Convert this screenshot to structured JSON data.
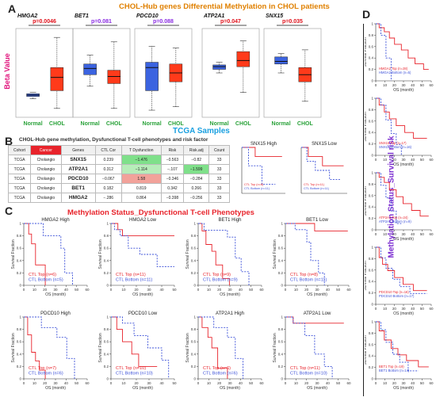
{
  "panels": {
    "a": "A",
    "b": "B",
    "c": "C",
    "d": "D"
  },
  "titles": {
    "a": "CHOL-Hub genes Differential Methylation in CHOL patients",
    "tcga": "TCGA Samples",
    "b": "CHOL-Hub gene methylation, Dysfunctional T-cell phenotypes and risk factor",
    "c": "Methylation Status_Dysfunctional T-cell Phenotypes",
    "d": "Methylation Status_Survival risk"
  },
  "box_ylabel": "Beta Value",
  "box_plots": [
    {
      "gene": "HMGA2",
      "p": "p=0.0046",
      "p_color": "#e0101a",
      "normal": [
        0.21,
        0.235,
        0.25,
        0.265,
        0.28
      ],
      "chol": [
        0.1,
        0.3,
        0.45,
        0.56,
        0.9
      ],
      "xlabels": [
        "Normal",
        "CHOL"
      ]
    },
    {
      "gene": "BET1",
      "p": "p=0.081",
      "p_color": "#8a2be2",
      "normal": [
        0.35,
        0.48,
        0.55,
        0.6,
        0.7
      ],
      "chol": [
        0.1,
        0.38,
        0.46,
        0.53,
        0.85
      ],
      "xlabels": [
        "Normal",
        "CHOL"
      ]
    },
    {
      "gene": "PDCD10",
      "p": "p=0.088",
      "p_color": "#8a2be2",
      "normal": [
        0.08,
        0.3,
        0.56,
        0.62,
        0.8
      ],
      "chol": [
        0.12,
        0.4,
        0.5,
        0.6,
        0.78
      ],
      "xlabels": [
        "Normal",
        "CHOL"
      ]
    },
    {
      "gene": "ATP2A1",
      "p": "p=0.047",
      "p_color": "#e0101a",
      "normal": [
        0.5,
        0.54,
        0.57,
        0.59,
        0.62
      ],
      "chol": [
        0.28,
        0.57,
        0.64,
        0.74,
        0.86
      ],
      "xlabels": [
        "Normal",
        "CHOL"
      ]
    },
    {
      "gene": "SNX15",
      "p": "p=0.035",
      "p_color": "#e0101a",
      "normal": [
        0.5,
        0.6,
        0.63,
        0.68,
        0.72
      ],
      "chol": [
        0.18,
        0.4,
        0.48,
        0.56,
        0.76
      ],
      "xlabels": [
        "Normal",
        "CHOL"
      ]
    }
  ],
  "table": {
    "headers": [
      "Cohort",
      "Cancer",
      "Genes",
      "CTL Cor",
      "T Dysfunction",
      "Risk",
      "Risk.adj",
      "Count"
    ],
    "rows": [
      [
        "TCGA",
        "Cholangio",
        "SNX15",
        "0.239",
        "−1.476",
        "−0.563",
        "−0.82",
        "33"
      ],
      [
        "TCGA",
        "Cholangio",
        "ATP2A1",
        "0.312",
        "−1.114",
        "−.107",
        "−1.599",
        "33"
      ],
      [
        "TCGA",
        "Cholangio",
        "PDCD10",
        "−0.067",
        "1.58",
        "−0.346",
        "−0.284",
        "33"
      ],
      [
        "TCGA",
        "Cholangio",
        "BET1",
        "0.182",
        "0.819",
        "0.342",
        "0.266",
        "33"
      ],
      [
        "TCGA",
        "Cholangio",
        "HMGA2",
        "−.286",
        "0.864",
        "−0.398",
        "−0.256",
        "33"
      ]
    ],
    "tdys_colors": [
      "#7fe08a",
      "#b7edb9",
      "#f2a29a",
      "#ffffff",
      "#ffffff"
    ],
    "risk_colors": [
      "#ffffff",
      "#ffffff",
      "#ffffff",
      "#ffffff",
      "#ffffff"
    ],
    "riskadj_colors": [
      "#ffffff",
      "#7fe08a",
      "#ffffff",
      "#ffffff",
      "#ffffff"
    ]
  },
  "km_small": [
    {
      "title": "SNX15 High",
      "top": "CTL Top (n=6)",
      "bottom": "CTL Bottom (n=11)"
    },
    {
      "title": "SNX15 Low",
      "top": "CTL Top (n=11)",
      "bottom": "CTL Bottom (n=11)"
    }
  ],
  "km_c": [
    {
      "title": "HMGA2 High",
      "top": "CTL Top (n=6)",
      "bottom": "CTL Bottom (n=5)",
      "red": [
        [
          0,
          1
        ],
        [
          5,
          1
        ],
        [
          5,
          0.83
        ],
        [
          8,
          0.83
        ],
        [
          8,
          0.67
        ],
        [
          12,
          0.67
        ],
        [
          12,
          0.33
        ],
        [
          22,
          0.33
        ],
        [
          22,
          0
        ]
      ],
      "blue": [
        [
          0,
          1
        ],
        [
          20,
          1
        ],
        [
          20,
          0.8
        ],
        [
          38,
          0.8
        ],
        [
          38,
          0.6
        ],
        [
          42,
          0.6
        ],
        [
          42,
          0.2
        ],
        [
          50,
          0.2
        ],
        [
          50,
          0
        ]
      ]
    },
    {
      "title": "HMGA2 Low",
      "top": "CTL Top (n=11)",
      "bottom": "CTL Bottom (n=11)",
      "red": [
        [
          0,
          1
        ],
        [
          6,
          1
        ],
        [
          6,
          0.9
        ],
        [
          10,
          0.9
        ],
        [
          10,
          0.8
        ],
        [
          60,
          0.8
        ]
      ],
      "blue": [
        [
          0,
          1
        ],
        [
          3,
          1
        ],
        [
          3,
          0.9
        ],
        [
          8,
          0.9
        ],
        [
          8,
          0.8
        ],
        [
          15,
          0.8
        ],
        [
          15,
          0.6
        ],
        [
          25,
          0.6
        ],
        [
          25,
          0.5
        ],
        [
          40,
          0.5
        ],
        [
          40,
          0.3
        ],
        [
          55,
          0.3
        ]
      ]
    },
    {
      "title": "BET1 High",
      "top": "CTL Top (n=9)",
      "bottom": "CTL Bottom (n=9)",
      "red": [
        [
          0,
          1
        ],
        [
          4,
          1
        ],
        [
          4,
          0.88
        ],
        [
          8,
          0.88
        ],
        [
          8,
          0.66
        ],
        [
          14,
          0.66
        ],
        [
          14,
          0.55
        ],
        [
          18,
          0.55
        ],
        [
          18,
          0.33
        ],
        [
          25,
          0.33
        ],
        [
          25,
          0.11
        ],
        [
          32,
          0.11
        ],
        [
          32,
          0
        ]
      ],
      "blue": [
        [
          0,
          1
        ],
        [
          6,
          1
        ],
        [
          6,
          0.89
        ],
        [
          30,
          0.89
        ],
        [
          30,
          0.78
        ],
        [
          38,
          0.78
        ],
        [
          38,
          0.44
        ],
        [
          44,
          0.44
        ],
        [
          44,
          0.22
        ],
        [
          52,
          0.22
        ],
        [
          52,
          0
        ]
      ]
    },
    {
      "title": "BET1 Low",
      "top": "CTL Top (n=8)",
      "bottom": "CTL Bottom (n=11)",
      "red": [
        [
          0,
          1
        ],
        [
          30,
          1
        ],
        [
          30,
          0.88
        ],
        [
          64,
          0.88
        ]
      ],
      "blue": [
        [
          0,
          1
        ],
        [
          10,
          1
        ],
        [
          10,
          0.9
        ],
        [
          22,
          0.9
        ],
        [
          22,
          0.7
        ],
        [
          26,
          0.7
        ],
        [
          26,
          0.4
        ],
        [
          34,
          0.4
        ],
        [
          34,
          0.2
        ],
        [
          40,
          0.2
        ],
        [
          40,
          0
        ]
      ]
    },
    {
      "title": "PDCD10 High",
      "top": "CTL Top (n=7)",
      "bottom": "CTL Bottom (n=6)",
      "red": [
        [
          0,
          1
        ],
        [
          4,
          1
        ],
        [
          4,
          0.71
        ],
        [
          8,
          0.71
        ],
        [
          8,
          0.43
        ],
        [
          12,
          0.43
        ],
        [
          12,
          0.29
        ],
        [
          16,
          0.29
        ],
        [
          16,
          0.14
        ],
        [
          22,
          0.14
        ],
        [
          22,
          0
        ]
      ],
      "blue": [
        [
          0,
          1
        ],
        [
          18,
          1
        ],
        [
          18,
          0.83
        ],
        [
          34,
          0.83
        ],
        [
          34,
          0.67
        ],
        [
          44,
          0.67
        ],
        [
          44,
          0.33
        ],
        [
          52,
          0.33
        ],
        [
          52,
          0
        ]
      ]
    },
    {
      "title": "PDCD10 Low",
      "top": "CTL Top (n=10)",
      "bottom": "CTL Bottom (n=10)",
      "red": [
        [
          0,
          1
        ],
        [
          5,
          1
        ],
        [
          5,
          0.8
        ],
        [
          10,
          0.8
        ],
        [
          10,
          0.6
        ],
        [
          18,
          0.6
        ],
        [
          18,
          0.4
        ],
        [
          24,
          0.4
        ],
        [
          24,
          0.2
        ],
        [
          40,
          0.2
        ]
      ],
      "blue": [
        [
          0,
          1
        ],
        [
          10,
          1
        ],
        [
          10,
          0.9
        ],
        [
          20,
          0.9
        ],
        [
          20,
          0.7
        ],
        [
          32,
          0.7
        ],
        [
          32,
          0.5
        ],
        [
          44,
          0.5
        ],
        [
          44,
          0.3
        ],
        [
          50,
          0.3
        ],
        [
          50,
          0
        ]
      ]
    },
    {
      "title": "ATP2A1 High",
      "top": "CTL Top (n=6)",
      "bottom": "CTL Bottom (n=6)",
      "red": [
        [
          0,
          1
        ],
        [
          4,
          1
        ],
        [
          4,
          0.83
        ],
        [
          10,
          0.83
        ],
        [
          10,
          0.67
        ],
        [
          14,
          0.67
        ],
        [
          14,
          0.5
        ],
        [
          20,
          0.5
        ],
        [
          20,
          0.17
        ],
        [
          30,
          0.17
        ],
        [
          30,
          0
        ]
      ],
      "blue": [
        [
          0,
          1
        ],
        [
          16,
          1
        ],
        [
          16,
          0.83
        ],
        [
          30,
          0.83
        ],
        [
          30,
          0.67
        ],
        [
          38,
          0.67
        ],
        [
          38,
          0.33
        ],
        [
          46,
          0.33
        ],
        [
          46,
          0
        ]
      ]
    },
    {
      "title": "ATP2A1 Low",
      "top": "CTL Top (n=11)",
      "bottom": "CTL Bottom (n=10)",
      "red": [
        [
          0,
          1
        ],
        [
          8,
          1
        ],
        [
          8,
          0.9
        ],
        [
          60,
          0.9
        ]
      ],
      "blue": [
        [
          0,
          1
        ],
        [
          8,
          1
        ],
        [
          8,
          0.9
        ],
        [
          20,
          0.9
        ],
        [
          20,
          0.7
        ],
        [
          30,
          0.7
        ],
        [
          30,
          0.4
        ],
        [
          40,
          0.4
        ],
        [
          40,
          0.2
        ],
        [
          48,
          0.2
        ],
        [
          48,
          0
        ]
      ]
    }
  ],
  "km_d": [
    {
      "top": "HMGA2 Top (n=28)",
      "bottom": "HMGA2 Bottom (n=5)",
      "red": [
        [
          0,
          1
        ],
        [
          4,
          1
        ],
        [
          4,
          0.93
        ],
        [
          10,
          0.93
        ],
        [
          10,
          0.86
        ],
        [
          16,
          0.86
        ],
        [
          16,
          0.75
        ],
        [
          22,
          0.75
        ],
        [
          22,
          0.64
        ],
        [
          30,
          0.64
        ],
        [
          30,
          0.54
        ],
        [
          38,
          0.54
        ],
        [
          38,
          0.4
        ],
        [
          46,
          0.4
        ],
        [
          46,
          0.3
        ],
        [
          56,
          0.3
        ],
        [
          56,
          0.2
        ],
        [
          62,
          0.2
        ]
      ],
      "blue": [
        [
          0,
          1
        ],
        [
          6,
          1
        ],
        [
          6,
          0.8
        ],
        [
          12,
          0.8
        ],
        [
          12,
          0.4
        ],
        [
          18,
          0.4
        ],
        [
          18,
          0
        ]
      ]
    },
    {
      "top": "SNX15 Top (n=17)",
      "bottom": "SNX15 Bottom (n=16)",
      "red": [
        [
          0,
          1
        ],
        [
          4,
          1
        ],
        [
          4,
          0.88
        ],
        [
          10,
          0.88
        ],
        [
          10,
          0.76
        ],
        [
          16,
          0.76
        ],
        [
          16,
          0.64
        ],
        [
          24,
          0.64
        ],
        [
          24,
          0.52
        ],
        [
          34,
          0.52
        ],
        [
          34,
          0.4
        ],
        [
          44,
          0.4
        ],
        [
          44,
          0.3
        ],
        [
          60,
          0.3
        ]
      ],
      "blue": [
        [
          0,
          1
        ],
        [
          6,
          1
        ],
        [
          6,
          0.88
        ],
        [
          12,
          0.88
        ],
        [
          12,
          0.62
        ],
        [
          18,
          0.62
        ],
        [
          18,
          0.38
        ],
        [
          24,
          0.38
        ],
        [
          24,
          0.19
        ],
        [
          30,
          0.19
        ],
        [
          30,
          0
        ]
      ]
    },
    {
      "top": "ATP2A1 Top (n=24)",
      "bottom": "ATP2A1 Bottom (n=9)",
      "red": [
        [
          0,
          1
        ],
        [
          4,
          1
        ],
        [
          4,
          0.92
        ],
        [
          10,
          0.92
        ],
        [
          10,
          0.83
        ],
        [
          16,
          0.83
        ],
        [
          16,
          0.7
        ],
        [
          24,
          0.7
        ],
        [
          24,
          0.58
        ],
        [
          32,
          0.58
        ],
        [
          32,
          0.46
        ],
        [
          42,
          0.46
        ],
        [
          42,
          0.34
        ],
        [
          52,
          0.34
        ],
        [
          52,
          0.24
        ],
        [
          62,
          0.24
        ]
      ],
      "blue": [
        [
          0,
          1
        ],
        [
          6,
          1
        ],
        [
          6,
          0.78
        ],
        [
          12,
          0.78
        ],
        [
          12,
          0.56
        ],
        [
          18,
          0.56
        ],
        [
          18,
          0.33
        ],
        [
          24,
          0.33
        ],
        [
          24,
          0.11
        ],
        [
          30,
          0.11
        ]
      ]
    },
    {
      "top": "PDCD10 Top (n=16)",
      "bottom": "PDCD10 Bottom (n=17)",
      "red": [
        [
          0,
          1
        ],
        [
          4,
          1
        ],
        [
          4,
          0.82
        ],
        [
          8,
          0.82
        ],
        [
          8,
          0.7
        ],
        [
          14,
          0.7
        ],
        [
          14,
          0.59
        ],
        [
          22,
          0.59
        ],
        [
          22,
          0.47
        ],
        [
          32,
          0.47
        ],
        [
          32,
          0.35
        ],
        [
          44,
          0.35
        ],
        [
          44,
          0.24
        ],
        [
          60,
          0.24
        ]
      ],
      "blue": [
        [
          0,
          1
        ],
        [
          6,
          1
        ],
        [
          6,
          0.81
        ],
        [
          12,
          0.81
        ],
        [
          12,
          0.63
        ],
        [
          20,
          0.63
        ],
        [
          20,
          0.44
        ],
        [
          28,
          0.44
        ],
        [
          28,
          0.31
        ],
        [
          40,
          0.31
        ],
        [
          40,
          0.19
        ],
        [
          60,
          0.19
        ]
      ]
    },
    {
      "top": "BET1 Top (n=19)",
      "bottom": "BET1 Bottom (n=14)",
      "red": [
        [
          0,
          1
        ],
        [
          4,
          1
        ],
        [
          4,
          0.84
        ],
        [
          10,
          0.84
        ],
        [
          10,
          0.68
        ],
        [
          18,
          0.68
        ],
        [
          18,
          0.53
        ],
        [
          26,
          0.53
        ],
        [
          26,
          0.42
        ],
        [
          36,
          0.42
        ],
        [
          36,
          0.32
        ],
        [
          50,
          0.32
        ],
        [
          50,
          0.21
        ],
        [
          62,
          0.21
        ]
      ],
      "blue": [
        [
          0,
          1
        ],
        [
          6,
          1
        ],
        [
          6,
          0.86
        ],
        [
          12,
          0.86
        ],
        [
          12,
          0.64
        ],
        [
          20,
          0.64
        ],
        [
          20,
          0.43
        ],
        [
          28,
          0.43
        ],
        [
          28,
          0.29
        ],
        [
          38,
          0.29
        ],
        [
          38,
          0.14
        ],
        [
          50,
          0.14
        ]
      ]
    }
  ],
  "km_axis": {
    "ylabel": "Survival Fraction",
    "xlabel": "OS (month)",
    "xticks": [
      "0",
      "10",
      "20",
      "30",
      "40",
      "50",
      "60"
    ],
    "yticks": [
      "0",
      "0.2",
      "0.4",
      "0.6",
      "0.8",
      "1"
    ],
    "xticks_c2": [
      "0",
      "10",
      "20",
      "30",
      "40",
      "50"
    ]
  },
  "colors": {
    "red": "#e8242c",
    "blue": "#3a4fd8",
    "boxblue": "#3b63e0",
    "boxred": "#ff3a1a",
    "green": "#2aa23a",
    "magenta": "#e0107a",
    "purple": "#7a2bd0",
    "orange": "#e08000",
    "cyan": "#1aa0e0"
  }
}
